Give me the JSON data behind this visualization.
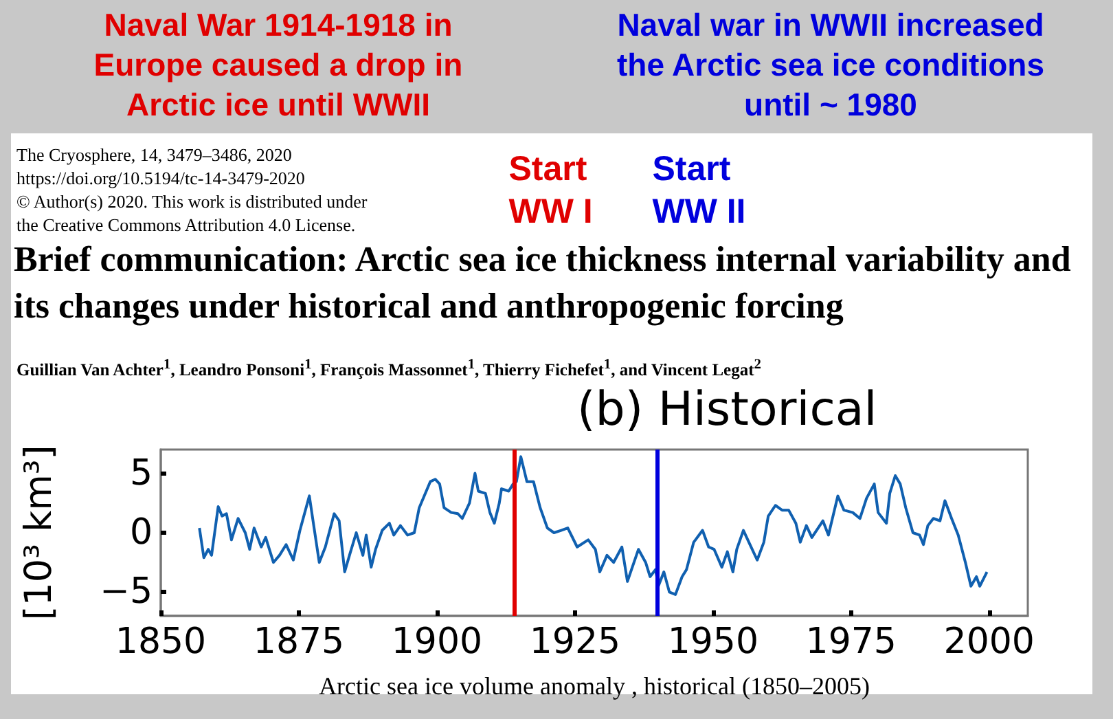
{
  "chart_data": {
    "type": "line",
    "title": "Brief communication: Arctic sea ice thickness internal variability and its changes under historical and anthropogenic forcing",
    "subtitle": "(b) Historical",
    "xlabel": "Arctic sea ice volume anomaly , historical (1850–2005)",
    "ylabel": "[10³ km³]",
    "annotations": [
      "Naval War 1914-1918 in Europe caused a drop in Arctic ice until WWII",
      "Naval war in WWII increased the Arctic sea ice conditions until ~ 1980",
      "The Cryosphere, 14, 3479–3486, 2020",
      "https://doi.org/10.5194/tc-14-3479-2020",
      "© Author(s) 2020. This work is distributed under",
      "the Creative Commons Attribution 4.0 License.",
      "Guillian Van Achter$^{1}$, Leandro Ponsoni$^{1}$, François Massonnet$^{1}$, Thierry Fichefet$^{1}$, and Vincent Legat$^{2}$"
    ],
    "series": [
      {
        "color": "#1060b0",
        "x": [
          1857.0,
          1857.8,
          1858.6,
          1859.2,
          1860.4,
          1861.1,
          1861.9,
          1862.8,
          1864.0,
          1865.3,
          1866.1,
          1866.9,
          1868.2,
          1869.0,
          1870.4,
          1871.5,
          1872.7,
          1874.0,
          1875.2,
          1876.9,
          1877.7,
          1878.7,
          1879.8,
          1881.4,
          1882.3,
          1883.3,
          1884.3,
          1885.4,
          1886.6,
          1887.2,
          1888.1,
          1888.9,
          1890.1,
          1891.4,
          1892.2,
          1893.4,
          1894.7,
          1895.9,
          1896.8,
          1898.8,
          1899.7,
          1900.5,
          1901.3,
          1902.6,
          1903.8,
          1904.6,
          1905.9,
          1906.9,
          1907.5,
          1908.8,
          1909.6,
          1910.4,
          1911.3,
          1911.7,
          1913.0,
          1913.8,
          1914.4,
          1915.2,
          1916.3,
          1917.5,
          1918.7,
          1920.0,
          1921.2,
          1922.5,
          1923.7,
          1925.4,
          1927.4,
          1928.7,
          1929.5,
          1930.8,
          1932.0,
          1933.5,
          1934.5,
          1936.5,
          1937.8,
          1938.6,
          1939.6,
          1940.1,
          1941.1,
          1942.1,
          1943.2,
          1944.4,
          1945.2,
          1946.5,
          1948.1,
          1949.2,
          1950.2,
          1951.6,
          1952.6,
          1953.6,
          1954.3,
          1955.5,
          1956.7,
          1958.0,
          1959.2,
          1960.0,
          1961.3,
          1962.5,
          1963.7,
          1965.0,
          1965.8,
          1966.9,
          1967.9,
          1969.9,
          1970.9,
          1972.6,
          1973.7,
          1975.3,
          1976.6,
          1977.8,
          1979.2,
          1979.9,
          1981.4,
          1982.0,
          1983.0,
          1983.9,
          1984.9,
          1986.2,
          1987.4,
          1988.1,
          1988.9,
          1989.9,
          1991.1,
          1992.0,
          1993.2,
          1994.4,
          1995.7,
          1996.7,
          1997.7,
          1998.3,
          1999.6
        ],
        "values": [
          0.4,
          -2.1,
          -1.4,
          -1.9,
          2.2,
          1.4,
          1.6,
          -0.6,
          1.2,
          0,
          -1.4,
          0.4,
          -1.2,
          -0.4,
          -2.5,
          -1.9,
          -1.0,
          -2.3,
          0.2,
          3.1,
          0.6,
          -2.5,
          -1.2,
          1.6,
          1.0,
          -3.3,
          -1.7,
          0,
          -1.9,
          -0.2,
          -2.9,
          -1.4,
          0.2,
          0.8,
          -0.2,
          0.6,
          -0.2,
          0,
          2.1,
          4.3,
          4.5,
          4.1,
          2.1,
          1.7,
          1.6,
          1.2,
          2.5,
          5.0,
          3.5,
          3.3,
          1.7,
          0.8,
          2.5,
          3.7,
          3.5,
          4.1,
          4.3,
          6.4,
          4.3,
          4.3,
          2.1,
          0.4,
          0,
          0.2,
          0.4,
          -1.2,
          -0.6,
          -1.4,
          -3.3,
          -1.9,
          -2.5,
          -1.2,
          -4.1,
          -1.4,
          -2.5,
          -3.7,
          -3.1,
          -4.5,
          -3.3,
          -5.0,
          -5.2,
          -3.7,
          -3.1,
          -0.8,
          0.2,
          -1.2,
          -1.4,
          -2.9,
          -1.6,
          -3.3,
          -1.4,
          0.2,
          -1.0,
          -2.3,
          -0.8,
          1.4,
          2.3,
          1.9,
          1.9,
          0.8,
          -0.8,
          0.6,
          -0.4,
          1.0,
          -0.2,
          3.1,
          1.9,
          1.7,
          1.2,
          2.9,
          4.1,
          1.7,
          0.8,
          3.3,
          4.8,
          4.1,
          2.1,
          0,
          -0.2,
          -1.0,
          0.6,
          1.2,
          1.0,
          2.7,
          1.2,
          -0.2,
          -2.5,
          -4.5,
          -3.7,
          -4.5,
          -3.3
        ]
      }
    ],
    "xlim": [
      1850,
      2007
    ],
    "xticks": [
      1850,
      1875,
      1900,
      1925,
      1950,
      1975,
      2000
    ],
    "ylim": [
      -7,
      7
    ],
    "yticks": [
      -5,
      0,
      5
    ],
    "ref_lines": [
      {
        "axis": "x",
        "value": 1914,
        "label": "Start\nWW I",
        "color": "#e00000"
      },
      {
        "axis": "x",
        "value": 1940,
        "label": "Start\nWW II",
        "color": "#0000dd"
      }
    ],
    "tick_labels": true
  }
}
